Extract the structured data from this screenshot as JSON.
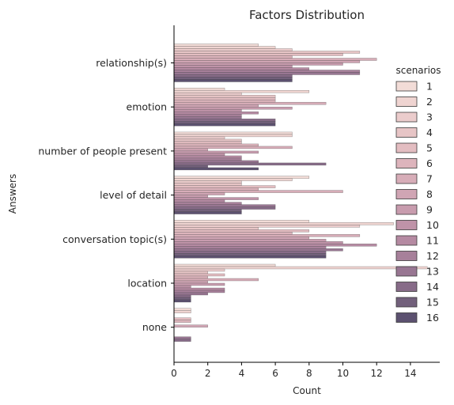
{
  "chart_data": {
    "type": "bar",
    "orientation": "horizontal",
    "title": "Factors Distribution",
    "xlabel": "Count",
    "ylabel": "Answers",
    "xlim": [
      0,
      15.7
    ],
    "xticks": [
      0,
      2,
      4,
      6,
      8,
      10,
      12,
      14
    ],
    "legend_title": "scenarios",
    "legend_position": "right",
    "categories": [
      "relationship(s)",
      "emotion",
      "number of people present",
      "level of detail",
      "conversation topic(s)",
      "location",
      "none"
    ],
    "series": [
      {
        "name": "1",
        "color": "#f2dcd7",
        "values": [
          5,
          3,
          7,
          8,
          8,
          6,
          1
        ]
      },
      {
        "name": "2",
        "color": "#efd4d1",
        "values": [
          6,
          8,
          7,
          7,
          13,
          15,
          1
        ]
      },
      {
        "name": "3",
        "color": "#ebcccc",
        "values": [
          7,
          4,
          3,
          4,
          11,
          3,
          0
        ]
      },
      {
        "name": "4",
        "color": "#e7c5c6",
        "values": [
          11,
          6,
          4,
          4,
          5,
          2,
          0
        ]
      },
      {
        "name": "5",
        "color": "#e3bdc1",
        "values": [
          10,
          6,
          4,
          6,
          8,
          3,
          1
        ]
      },
      {
        "name": "6",
        "color": "#ddb4bc",
        "values": [
          7,
          6,
          5,
          5,
          7,
          2,
          1
        ]
      },
      {
        "name": "7",
        "color": "#d7adb8",
        "values": [
          12,
          9,
          7,
          10,
          11,
          5,
          0
        ]
      },
      {
        "name": "8",
        "color": "#d0a5b4",
        "values": [
          11,
          5,
          2,
          3,
          8,
          2,
          2
        ]
      },
      {
        "name": "9",
        "color": "#c89cae",
        "values": [
          10,
          7,
          5,
          2,
          9,
          3,
          0
        ]
      },
      {
        "name": "10",
        "color": "#bf93a8",
        "values": [
          7,
          4,
          3,
          5,
          10,
          1,
          0
        ]
      },
      {
        "name": "11",
        "color": "#b58aa2",
        "values": [
          8,
          5,
          4,
          3,
          12,
          3,
          0
        ]
      },
      {
        "name": "12",
        "color": "#a7809a",
        "values": [
          11,
          4,
          4,
          4,
          9,
          3,
          0
        ]
      },
      {
        "name": "13",
        "color": "#987692",
        "values": [
          11,
          4,
          5,
          6,
          10,
          2,
          1
        ]
      },
      {
        "name": "14",
        "color": "#876b88",
        "values": [
          7,
          6,
          9,
          6,
          9,
          1,
          1
        ]
      },
      {
        "name": "15",
        "color": "#72607b",
        "values": [
          7,
          6,
          2,
          4,
          9,
          1,
          0
        ]
      },
      {
        "name": "16",
        "color": "#5c5170",
        "values": [
          7,
          6,
          5,
          4,
          9,
          1,
          0
        ]
      }
    ]
  }
}
